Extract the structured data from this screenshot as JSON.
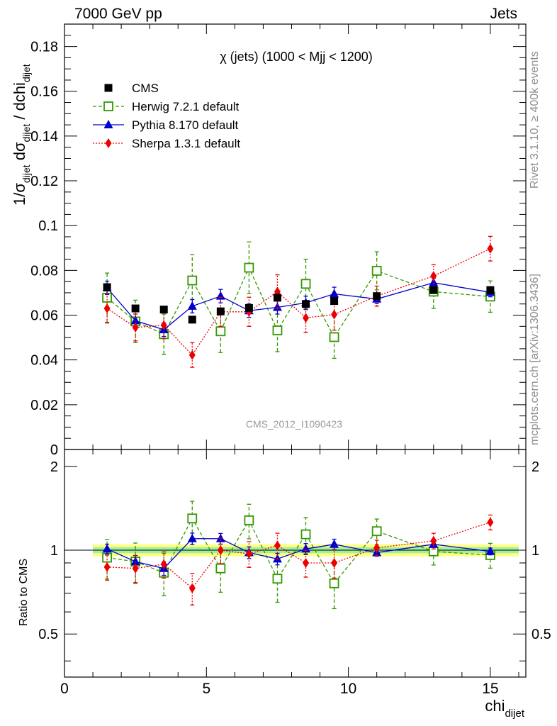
{
  "header": {
    "left": "7000 GeV pp",
    "right": "Jets"
  },
  "side_labels": {
    "rivet": "Rivet 3.1.10, ≥ 400k events",
    "mcplots": "mcplots.cern.ch [arXiv:1306.3436]"
  },
  "chart_data": {
    "type": "scatter",
    "title": "χ (jets) (1000 < Mjj < 1200)",
    "watermark": "CMS_2012_I1090423",
    "xlabel": "chi_dijet",
    "ylabel": "1/σ_dijet dσ_dijet / dchi_dijet",
    "ratio_ylabel": "Ratio to CMS",
    "xlim": [
      0,
      16.25
    ],
    "ylim": [
      0,
      0.19
    ],
    "ratio_ylim": [
      0.35,
      2.3
    ],
    "ratio_log": true,
    "x_ticks": [
      0,
      5,
      10,
      15
    ],
    "y_ticks": [
      0,
      0.02,
      0.04,
      0.06,
      0.08,
      0.1,
      0.12,
      0.14,
      0.16,
      0.18
    ],
    "y_tick_labels": [
      "0",
      "0.02",
      "0.04",
      "0.06",
      "0.08",
      "0.1",
      "0.12",
      "0.14",
      "0.16",
      "0.18"
    ],
    "ratio_ticks": [
      0.5,
      1,
      2
    ],
    "ratio_tick_labels": [
      "0.5",
      "1",
      "2"
    ],
    "legend_position": "top-left",
    "x": [
      1.5,
      2.5,
      3.5,
      4.5,
      5.5,
      6.5,
      7.5,
      8.5,
      9.5,
      11,
      13,
      15
    ],
    "bin_edges": [
      1,
      2,
      3,
      4,
      5,
      6,
      7,
      8,
      9,
      10,
      12,
      14,
      16
    ],
    "series": [
      {
        "name": "CMS",
        "color": "#000000",
        "marker": "square-filled",
        "values": [
          0.0725,
          0.063,
          0.0625,
          0.058,
          0.0617,
          0.0632,
          0.0678,
          0.065,
          0.0663,
          0.0685,
          0.0712,
          0.0712
        ],
        "ratio_band_inner": 0.025,
        "ratio_band_outer": 0.05
      },
      {
        "name": "Herwig 7.2.1 default",
        "color": "#339900",
        "marker": "square-open",
        "linestyle": "dashed",
        "values": [
          0.0678,
          0.0572,
          0.0515,
          0.0755,
          0.0528,
          0.0812,
          0.0532,
          0.074,
          0.0502,
          0.0798,
          0.0705,
          0.0683
        ],
        "errors": [
          0.011,
          0.0095,
          0.009,
          0.0115,
          0.0095,
          0.0115,
          0.0095,
          0.011,
          0.0095,
          0.0085,
          0.0075,
          0.007
        ],
        "ratio": [
          0.94,
          0.91,
          0.83,
          1.3,
          0.86,
          1.28,
          0.79,
          1.14,
          0.76,
          1.17,
          0.99,
          0.96
        ]
      },
      {
        "name": "Pythia 8.170 default",
        "color": "#0000cc",
        "marker": "triangle-filled",
        "linestyle": "solid",
        "values": [
          0.0722,
          0.0575,
          0.0535,
          0.064,
          0.0685,
          0.062,
          0.0635,
          0.0655,
          0.0695,
          0.0672,
          0.0745,
          0.0702
        ],
        "errors": [
          0.003,
          0.003,
          0.003,
          0.003,
          0.003,
          0.003,
          0.003,
          0.003,
          0.003,
          0.002,
          0.002,
          0.002
        ],
        "ratio": [
          1.01,
          0.91,
          0.86,
          1.1,
          1.1,
          0.98,
          0.93,
          1.01,
          1.05,
          0.98,
          1.05,
          0.99
        ]
      },
      {
        "name": "Sherpa 1.3.1 default",
        "color": "#ee0000",
        "marker": "diamond-filled",
        "linestyle": "dotted",
        "values": [
          0.063,
          0.0545,
          0.0555,
          0.0422,
          0.0615,
          0.0615,
          0.0705,
          0.0588,
          0.0603,
          0.0685,
          0.0775,
          0.0897
        ],
        "errors": [
          0.0065,
          0.006,
          0.006,
          0.0055,
          0.0065,
          0.0065,
          0.0075,
          0.0065,
          0.007,
          0.0045,
          0.005,
          0.0055
        ],
        "ratio": [
          0.87,
          0.86,
          0.89,
          0.73,
          1.0,
          0.97,
          1.04,
          0.9,
          0.9,
          1.02,
          1.08,
          1.26
        ]
      }
    ]
  }
}
